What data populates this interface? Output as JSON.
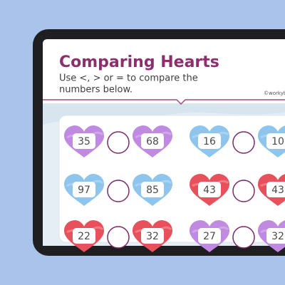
{
  "header": {
    "title": "Comparing Hearts",
    "instruction_lines": [
      "Use <, > or = to compare the",
      "numbers below."
    ],
    "credit": "©workybo"
  },
  "rows": [
    [
      {
        "left": {
          "number": "35",
          "color": "#bf8ae0"
        },
        "right": {
          "number": "68",
          "color": "#bf8ae0"
        }
      },
      {
        "left": {
          "number": "16",
          "color": "#8fc4ec"
        },
        "right": {
          "number": "10",
          "color": "#8fc4ec"
        }
      }
    ],
    [
      {
        "left": {
          "number": "97",
          "color": "#8fc4ec"
        },
        "right": {
          "number": "85",
          "color": "#8fc4ec"
        }
      },
      {
        "left": {
          "number": "43",
          "color": "#e8505b"
        },
        "right": {
          "number": "43",
          "color": "#e8505b"
        }
      }
    ],
    [
      {
        "left": {
          "number": "22",
          "color": "#e8505b"
        },
        "right": {
          "number": "32",
          "color": "#e8505b"
        }
      },
      {
        "left": {
          "number": "27",
          "color": "#bf8ae0"
        },
        "right": {
          "number": "32",
          "color": "#bf8ae0"
        }
      }
    ]
  ]
}
